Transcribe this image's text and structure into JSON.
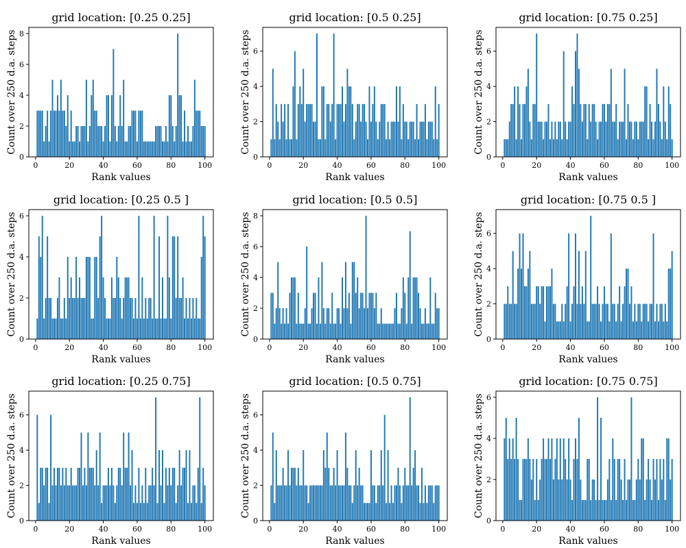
{
  "figure": {
    "bar_color": "#1f77b4",
    "axis_color": "#000000",
    "background": "#ffffff"
  },
  "chart_data": [
    {
      "type": "bar",
      "title": "grid location: [0.25 0.25]",
      "xlabel": "Rank values",
      "ylabel": "Count over 250 d.a. steps",
      "xlim": [
        -4,
        105
      ],
      "ylim": [
        0,
        8.4
      ],
      "xticks": [
        0,
        20,
        40,
        60,
        80,
        100
      ],
      "yticks": [
        0,
        2,
        4,
        6,
        8
      ],
      "x_start": 1,
      "values": [
        3,
        3,
        3,
        3,
        1,
        2,
        3,
        1,
        3,
        5,
        3,
        3,
        4,
        3,
        5,
        3,
        3,
        2,
        4,
        1,
        3,
        1,
        1,
        2,
        2,
        1,
        2,
        2,
        2,
        5,
        1,
        2,
        4,
        5,
        3,
        3,
        2,
        2,
        2,
        1,
        2,
        4,
        4,
        1,
        4,
        7,
        2,
        1,
        2,
        4,
        2,
        5,
        1,
        1,
        2,
        2,
        3,
        3,
        3,
        1,
        3,
        3,
        3,
        1,
        1,
        1,
        1,
        1,
        1,
        1,
        2,
        2,
        2,
        2,
        1,
        1,
        2,
        1,
        4,
        4,
        2,
        1,
        2,
        8,
        4,
        4,
        1,
        3,
        1,
        2,
        1,
        1,
        2,
        5,
        3,
        3,
        3,
        2,
        2,
        2
      ]
    },
    {
      "type": "bar",
      "title": "grid location: [0.5 0.25]",
      "xlabel": "Rank values",
      "ylabel": "Count over 250 d.a. steps",
      "xlim": [
        -4,
        105
      ],
      "ylim": [
        0,
        7.35
      ],
      "xticks": [
        0,
        20,
        40,
        60,
        80,
        100
      ],
      "yticks": [
        0,
        2,
        4,
        6
      ],
      "x_start": 1,
      "values": [
        1,
        5,
        1,
        3,
        2,
        1,
        3,
        2,
        3,
        1,
        3,
        1,
        1,
        4,
        6,
        1,
        3,
        4,
        3,
        5,
        2,
        3,
        3,
        3,
        3,
        2,
        2,
        7,
        1,
        1,
        4,
        4,
        1,
        3,
        3,
        2,
        3,
        7,
        1,
        3,
        3,
        3,
        4,
        2,
        3,
        5,
        4,
        4,
        3,
        1,
        2,
        3,
        3,
        2,
        3,
        3,
        2,
        1,
        4,
        2,
        3,
        4,
        2,
        1,
        2,
        3,
        3,
        3,
        1,
        2,
        1,
        2,
        2,
        2,
        4,
        2,
        4,
        1,
        3,
        2,
        2,
        1,
        2,
        2,
        2,
        1,
        3,
        1,
        2,
        2,
        2,
        3,
        1,
        2,
        2,
        2,
        1,
        4,
        1,
        3
      ]
    },
    {
      "type": "bar",
      "title": "grid location: [0.75 0.25]",
      "xlabel": "Rank values",
      "ylabel": "Count over 250 d.a. steps",
      "xlim": [
        -4,
        105
      ],
      "ylim": [
        0,
        7.35
      ],
      "xticks": [
        0,
        20,
        40,
        60,
        80,
        100
      ],
      "yticks": [
        0,
        2,
        4,
        6
      ],
      "x_start": 1,
      "values": [
        1,
        1,
        1,
        2,
        3,
        3,
        4,
        1,
        4,
        3,
        1,
        3,
        3,
        4,
        5,
        2,
        1,
        3,
        3,
        7,
        2,
        2,
        2,
        1,
        2,
        2,
        3,
        1,
        2,
        1,
        2,
        1,
        2,
        2,
        1,
        6,
        2,
        1,
        2,
        2,
        4,
        3,
        6,
        7,
        5,
        3,
        2,
        3,
        3,
        1,
        3,
        2,
        3,
        3,
        2,
        1,
        2,
        2,
        3,
        3,
        2,
        3,
        3,
        5,
        2,
        2,
        3,
        1,
        2,
        2,
        2,
        5,
        1,
        3,
        2,
        2,
        1,
        2,
        2,
        1,
        2,
        2,
        2,
        4,
        4,
        1,
        3,
        2,
        1,
        2,
        5,
        3,
        2,
        1,
        4,
        2,
        1,
        4,
        3,
        1
      ]
    },
    {
      "type": "bar",
      "title": "grid location: [0.25 0.5 ]",
      "xlabel": "Rank values",
      "ylabel": "Count over 250 d.a. steps",
      "xlim": [
        -4,
        105
      ],
      "ylim": [
        0,
        6.3
      ],
      "xticks": [
        0,
        20,
        40,
        60,
        80,
        100
      ],
      "yticks": [
        0,
        2,
        4,
        6
      ],
      "x_start": 1,
      "values": [
        1,
        5,
        4,
        6,
        1,
        2,
        5,
        2,
        2,
        1,
        1,
        1,
        2,
        3,
        1,
        1,
        2,
        1,
        4,
        2,
        3,
        2,
        2,
        4,
        2,
        3,
        2,
        2,
        2,
        4,
        4,
        4,
        1,
        1,
        4,
        4,
        2,
        5,
        6,
        3,
        2,
        1,
        1,
        1,
        3,
        2,
        2,
        4,
        3,
        2,
        1,
        2,
        3,
        3,
        3,
        2,
        2,
        1,
        2,
        1,
        6,
        1,
        3,
        1,
        2,
        1,
        2,
        2,
        1,
        6,
        1,
        1,
        5,
        1,
        3,
        1,
        1,
        6,
        3,
        1,
        5,
        5,
        2,
        5,
        2,
        2,
        3,
        1,
        2,
        1,
        2,
        1,
        2,
        1,
        2,
        1,
        1,
        4,
        6,
        5
      ]
    },
    {
      "type": "bar",
      "title": "grid location: [0.5 0.5]",
      "xlabel": "Rank values",
      "ylabel": "Count over 250 d.a. steps",
      "xlim": [
        -4,
        105
      ],
      "ylim": [
        0,
        8.4
      ],
      "xticks": [
        0,
        20,
        40,
        60,
        80,
        100
      ],
      "yticks": [
        0,
        2,
        4,
        6,
        8
      ],
      "x_start": 1,
      "values": [
        3,
        3,
        1,
        2,
        5,
        2,
        1,
        2,
        1,
        2,
        1,
        3,
        4,
        4,
        4,
        1,
        3,
        1,
        1,
        1,
        2,
        6,
        1,
        1,
        2,
        3,
        3,
        1,
        4,
        1,
        5,
        2,
        1,
        2,
        2,
        1,
        3,
        1,
        1,
        2,
        2,
        1,
        4,
        2,
        5,
        2,
        3,
        1,
        5,
        5,
        3,
        4,
        2,
        3,
        3,
        2,
        8,
        2,
        3,
        3,
        3,
        2,
        3,
        1,
        1,
        2,
        1,
        1,
        1,
        1,
        1,
        1,
        1,
        2,
        3,
        1,
        1,
        2,
        4,
        3,
        1,
        4,
        7,
        1,
        4,
        4,
        4,
        3,
        2,
        1,
        1,
        2,
        1,
        1,
        4,
        1,
        1,
        3,
        2,
        2
      ]
    },
    {
      "type": "bar",
      "title": "grid location: [0.75 0.5 ]",
      "xlabel": "Rank values",
      "ylabel": "Count over 250 d.a. steps",
      "xlim": [
        -4,
        105
      ],
      "ylim": [
        0,
        7.35
      ],
      "xticks": [
        0,
        20,
        40,
        60,
        80,
        100
      ],
      "yticks": [
        0,
        2,
        4,
        6
      ],
      "x_start": 1,
      "values": [
        2,
        2,
        3,
        2,
        2,
        5,
        2,
        2,
        4,
        6,
        4,
        6,
        3,
        3,
        4,
        5,
        2,
        2,
        2,
        3,
        3,
        2,
        3,
        3,
        1,
        3,
        3,
        3,
        4,
        2,
        2,
        1,
        1,
        1,
        2,
        1,
        2,
        3,
        6,
        1,
        2,
        3,
        6,
        2,
        5,
        2,
        3,
        2,
        5,
        1,
        1,
        7,
        2,
        2,
        2,
        3,
        2,
        1,
        2,
        3,
        2,
        2,
        1,
        6,
        2,
        2,
        1,
        2,
        3,
        1,
        2,
        3,
        4,
        4,
        2,
        3,
        1,
        2,
        1,
        2,
        2,
        1,
        2,
        2,
        2,
        1,
        2,
        2,
        6,
        1,
        2,
        1,
        2,
        2,
        1,
        2,
        1,
        4,
        4,
        5
      ]
    },
    {
      "type": "bar",
      "title": "grid location: [0.25 0.75]",
      "xlabel": "Rank values",
      "ylabel": "Count over 250 d.a. steps",
      "xlim": [
        -4,
        105
      ],
      "ylim": [
        0,
        7.35
      ],
      "xticks": [
        0,
        20,
        40,
        60,
        80,
        100
      ],
      "yticks": [
        0,
        2,
        4,
        6
      ],
      "x_start": 1,
      "values": [
        6,
        1,
        3,
        3,
        2,
        3,
        3,
        1,
        6,
        2,
        3,
        2,
        3,
        3,
        2,
        3,
        2,
        3,
        2,
        2,
        3,
        2,
        2,
        2,
        3,
        3,
        5,
        2,
        3,
        2,
        5,
        3,
        3,
        3,
        2,
        4,
        2,
        5,
        1,
        2,
        2,
        2,
        3,
        2,
        3,
        2,
        1,
        2,
        3,
        3,
        2,
        5,
        3,
        3,
        5,
        2,
        4,
        1,
        2,
        1,
        3,
        1,
        2,
        1,
        3,
        1,
        2,
        2,
        3,
        2,
        7,
        1,
        4,
        2,
        4,
        1,
        3,
        2,
        3,
        2,
        3,
        3,
        1,
        2,
        4,
        2,
        3,
        3,
        4,
        1,
        4,
        1,
        2,
        2,
        1,
        3,
        7,
        1,
        3,
        2
      ]
    },
    {
      "type": "bar",
      "title": "grid location: [0.5 0.75]",
      "xlabel": "Rank values",
      "ylabel": "Count over 250 d.a. steps",
      "xlim": [
        -4,
        105
      ],
      "ylim": [
        0,
        7.35
      ],
      "xticks": [
        0,
        20,
        40,
        60,
        80,
        100
      ],
      "yticks": [
        0,
        2,
        4,
        6
      ],
      "x_start": 1,
      "values": [
        2,
        5,
        1,
        4,
        2,
        2,
        2,
        3,
        2,
        2,
        4,
        2,
        3,
        3,
        3,
        2,
        3,
        2,
        2,
        4,
        2,
        2,
        1,
        2,
        2,
        2,
        2,
        2,
        2,
        2,
        2,
        4,
        3,
        5,
        3,
        2,
        2,
        3,
        2,
        4,
        2,
        2,
        2,
        2,
        5,
        3,
        2,
        2,
        1,
        2,
        4,
        2,
        3,
        2,
        2,
        1,
        1,
        1,
        1,
        4,
        2,
        2,
        1,
        2,
        2,
        4,
        2,
        6,
        1,
        4,
        1,
        2,
        1,
        2,
        2,
        3,
        2,
        1,
        2,
        3,
        2,
        2,
        7,
        2,
        3,
        4,
        2,
        2,
        1,
        3,
        1,
        2,
        1,
        2,
        2,
        2,
        1,
        2,
        2,
        2
      ]
    },
    {
      "type": "bar",
      "title": "grid location: [0.75 0.75]",
      "xlabel": "Rank values",
      "ylabel": "Count over 250 d.a. steps",
      "xlim": [
        -4,
        105
      ],
      "ylim": [
        0,
        6.3
      ],
      "xticks": [
        0,
        20,
        40,
        60,
        80,
        100
      ],
      "yticks": [
        0,
        2,
        4,
        6
      ],
      "x_start": 1,
      "values": [
        4,
        5,
        3,
        4,
        3,
        4,
        3,
        5,
        3,
        1,
        1,
        3,
        3,
        3,
        4,
        3,
        2,
        3,
        1,
        3,
        1,
        2,
        3,
        4,
        3,
        3,
        4,
        3,
        4,
        2,
        3,
        4,
        2,
        4,
        2,
        4,
        3,
        2,
        4,
        2,
        1,
        3,
        4,
        3,
        5,
        2,
        1,
        1,
        1,
        3,
        3,
        1,
        2,
        2,
        1,
        6,
        1,
        5,
        1,
        1,
        1,
        2,
        3,
        1,
        4,
        3,
        1,
        3,
        3,
        2,
        1,
        3,
        1,
        2,
        2,
        6,
        1,
        1,
        2,
        3,
        2,
        4,
        4,
        1,
        2,
        3,
        2,
        1,
        3,
        2,
        3,
        1,
        3,
        2,
        3,
        1,
        4,
        4,
        2,
        3
      ]
    }
  ]
}
